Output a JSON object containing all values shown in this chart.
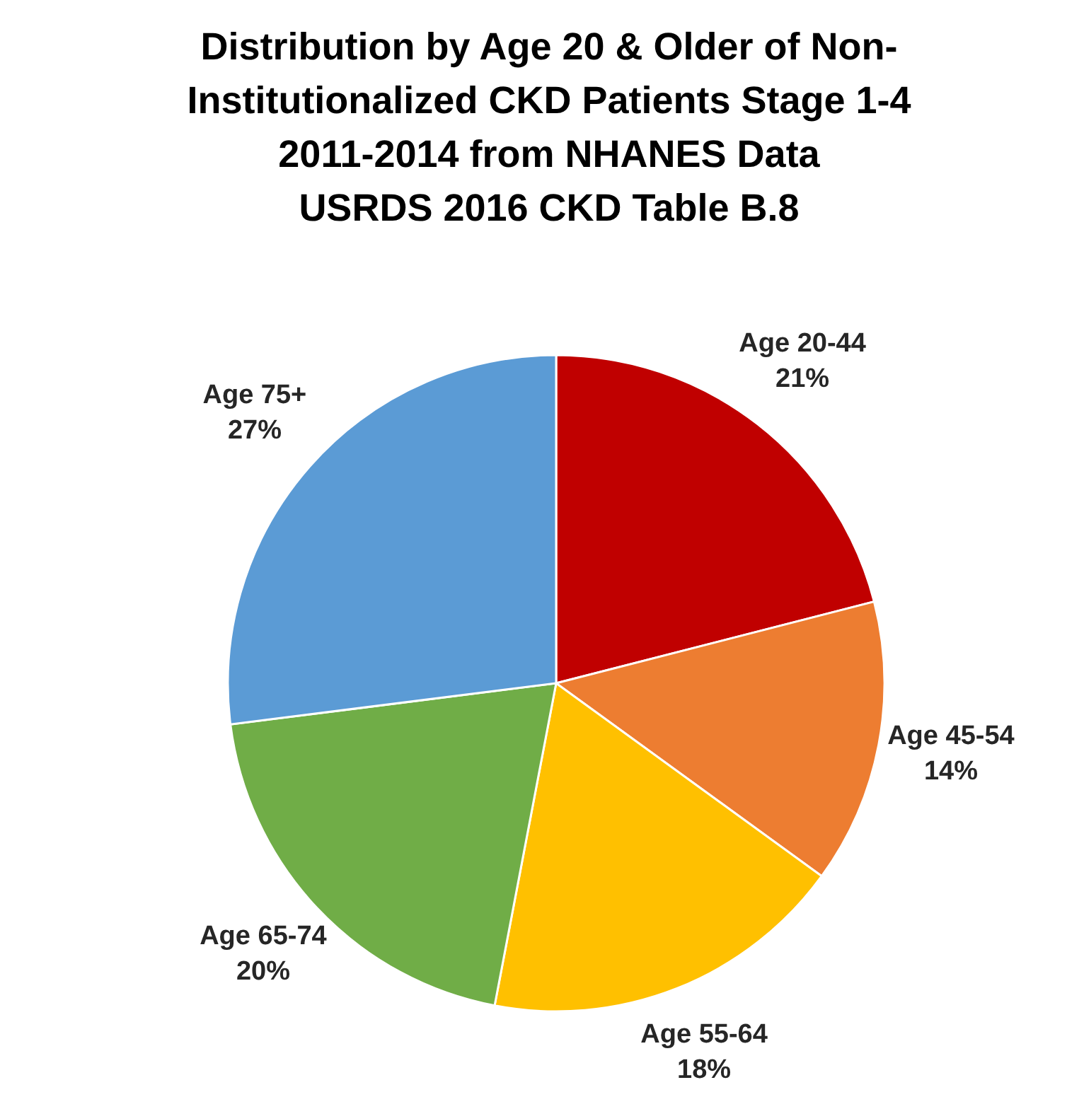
{
  "chart_data": {
    "type": "pie",
    "title": "Distribution by Age 20 & Older of Non-\nInstitutionalized CKD Patients Stage 1-4\n2011-2014 from NHANES Data\nUSRDS 2016 CKD Table B.8",
    "categories": [
      "Age 20-44",
      "Age 45-54",
      "Age 55-64",
      "Age 65-74",
      "Age 75+"
    ],
    "values": [
      21,
      14,
      18,
      20,
      27
    ],
    "colors": [
      "#c00000",
      "#ed7d31",
      "#ffc000",
      "#70ad47",
      "#5b9bd5"
    ],
    "value_labels": [
      "21%",
      "14%",
      "18%",
      "20%",
      "27%"
    ]
  }
}
